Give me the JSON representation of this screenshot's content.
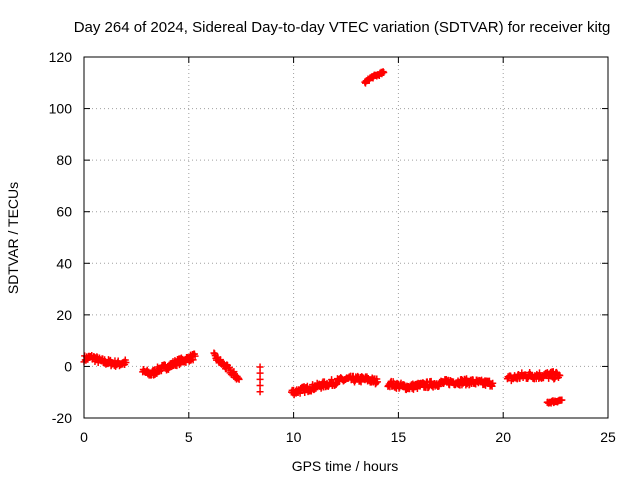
{
  "chart_data": {
    "type": "scatter",
    "title": "Day 264 of 2024, Sidereal Day-to-day VTEC variation (SDTVAR) for receiver kitg",
    "xlabel": "GPS time / hours",
    "ylabel": "SDTVAR / TECUs",
    "xlim": [
      0,
      25
    ],
    "ylim": [
      -20,
      120
    ],
    "xticks": [
      0,
      5,
      10,
      15,
      20,
      25
    ],
    "yticks": [
      -20,
      0,
      20,
      40,
      60,
      80,
      100,
      120
    ],
    "grid": true,
    "marker": "+",
    "color": "#ff0000",
    "segments": [
      {
        "name": "seg1",
        "x": [
          0.0,
          0.4,
          0.8,
          1.2,
          1.6,
          2.0
        ],
        "y": [
          3,
          3.5,
          2,
          1.5,
          1,
          1.5
        ],
        "spread": 2.5
      },
      {
        "name": "seg2",
        "x": [
          2.8,
          3.2,
          3.6,
          4.0,
          4.4,
          4.8,
          5.3
        ],
        "y": [
          -2,
          -3,
          -1,
          0,
          1.5,
          2.5,
          4
        ],
        "spread": 2.5
      },
      {
        "name": "seg3",
        "x": [
          6.2,
          6.6,
          7.0,
          7.4
        ],
        "y": [
          4,
          1,
          -2,
          -5
        ],
        "spread": 2.5
      },
      {
        "name": "seg4",
        "x": [
          8.4
        ],
        "y": [
          -5
        ],
        "spread": 3
      },
      {
        "name": "seg5",
        "x": [
          9.9,
          10.5,
          11.0,
          11.5,
          12.0,
          12.5,
          13.0,
          13.5,
          14.0
        ],
        "y": [
          -10,
          -9,
          -8,
          -7,
          -6,
          -5,
          -5,
          -5,
          -6
        ],
        "spread": 2.5
      },
      {
        "name": "seg6",
        "x": [
          14.5,
          15.0,
          15.5,
          16.0,
          16.5,
          17.0,
          17.5,
          18.0,
          18.5,
          19.0,
          19.5
        ],
        "y": [
          -6.5,
          -7.5,
          -8,
          -7.5,
          -7,
          -6.5,
          -6,
          -6,
          -6,
          -6.5,
          -6.5
        ],
        "spread": 2.5
      },
      {
        "name": "seg7",
        "x": [
          20.2,
          20.7,
          21.2,
          21.7,
          22.2,
          22.7
        ],
        "y": [
          -5,
          -4,
          -3.5,
          -3.5,
          -3.5,
          -3.5
        ],
        "spread": 3
      },
      {
        "name": "seg8",
        "x": [
          13.4,
          13.7,
          14.0,
          14.3
        ],
        "y": [
          110,
          112,
          113,
          114
        ],
        "spread": 1
      },
      {
        "name": "seg9",
        "x": [
          22.1,
          22.5,
          22.8
        ],
        "y": [
          -14,
          -13.5,
          -13
        ],
        "spread": 1
      }
    ]
  }
}
